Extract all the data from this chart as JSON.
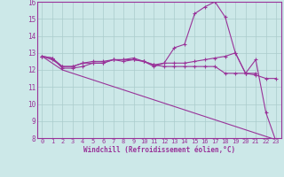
{
  "background_color": "#cce8e8",
  "grid_color": "#aacccc",
  "line_color": "#993399",
  "xlabel": "Windchill (Refroidissement éolien,°C)",
  "xlim": [
    -0.5,
    23.5
  ],
  "ylim": [
    8,
    16
  ],
  "yticks": [
    8,
    9,
    10,
    11,
    12,
    13,
    14,
    15,
    16
  ],
  "xticks": [
    0,
    1,
    2,
    3,
    4,
    5,
    6,
    7,
    8,
    9,
    10,
    11,
    12,
    13,
    14,
    15,
    16,
    17,
    18,
    19,
    20,
    21,
    22,
    23
  ],
  "series": [
    {
      "x": [
        0,
        1,
        2,
        3,
        4,
        5,
        6,
        7,
        8,
        9,
        10,
        11,
        12,
        13,
        14,
        15,
        16,
        17,
        18,
        19,
        20,
        21,
        22,
        23
      ],
      "y": [
        12.8,
        12.7,
        12.1,
        12.1,
        12.2,
        12.4,
        12.4,
        12.6,
        12.5,
        12.6,
        12.5,
        12.2,
        12.4,
        13.3,
        13.5,
        15.3,
        15.7,
        16.0,
        15.1,
        13.0,
        11.8,
        12.6,
        9.5,
        7.8
      ],
      "marker": true
    },
    {
      "x": [
        0,
        1,
        2,
        3,
        4,
        5,
        6,
        7,
        8,
        9,
        10,
        11,
        12,
        13,
        14,
        15,
        16,
        17,
        18,
        19,
        20,
        21,
        22,
        23
      ],
      "y": [
        12.8,
        12.7,
        12.2,
        12.2,
        12.4,
        12.5,
        12.5,
        12.6,
        12.6,
        12.7,
        12.5,
        12.3,
        12.4,
        12.4,
        12.4,
        12.5,
        12.6,
        12.7,
        12.8,
        13.0,
        11.8,
        11.7,
        11.5,
        11.5
      ],
      "marker": true
    },
    {
      "x": [
        0,
        2,
        23
      ],
      "y": [
        12.8,
        12.0,
        7.9
      ],
      "marker": false
    },
    {
      "x": [
        0,
        1,
        2,
        3,
        4,
        5,
        6,
        7,
        8,
        9,
        10,
        11,
        12,
        13,
        14,
        15,
        16,
        17,
        18,
        19,
        20,
        21
      ],
      "y": [
        12.8,
        12.6,
        12.2,
        12.2,
        12.4,
        12.4,
        12.4,
        12.6,
        12.6,
        12.6,
        12.5,
        12.3,
        12.2,
        12.2,
        12.2,
        12.2,
        12.2,
        12.2,
        11.8,
        11.8,
        11.8,
        11.8
      ],
      "marker": true
    }
  ],
  "figsize": [
    3.2,
    2.0
  ],
  "dpi": 100
}
